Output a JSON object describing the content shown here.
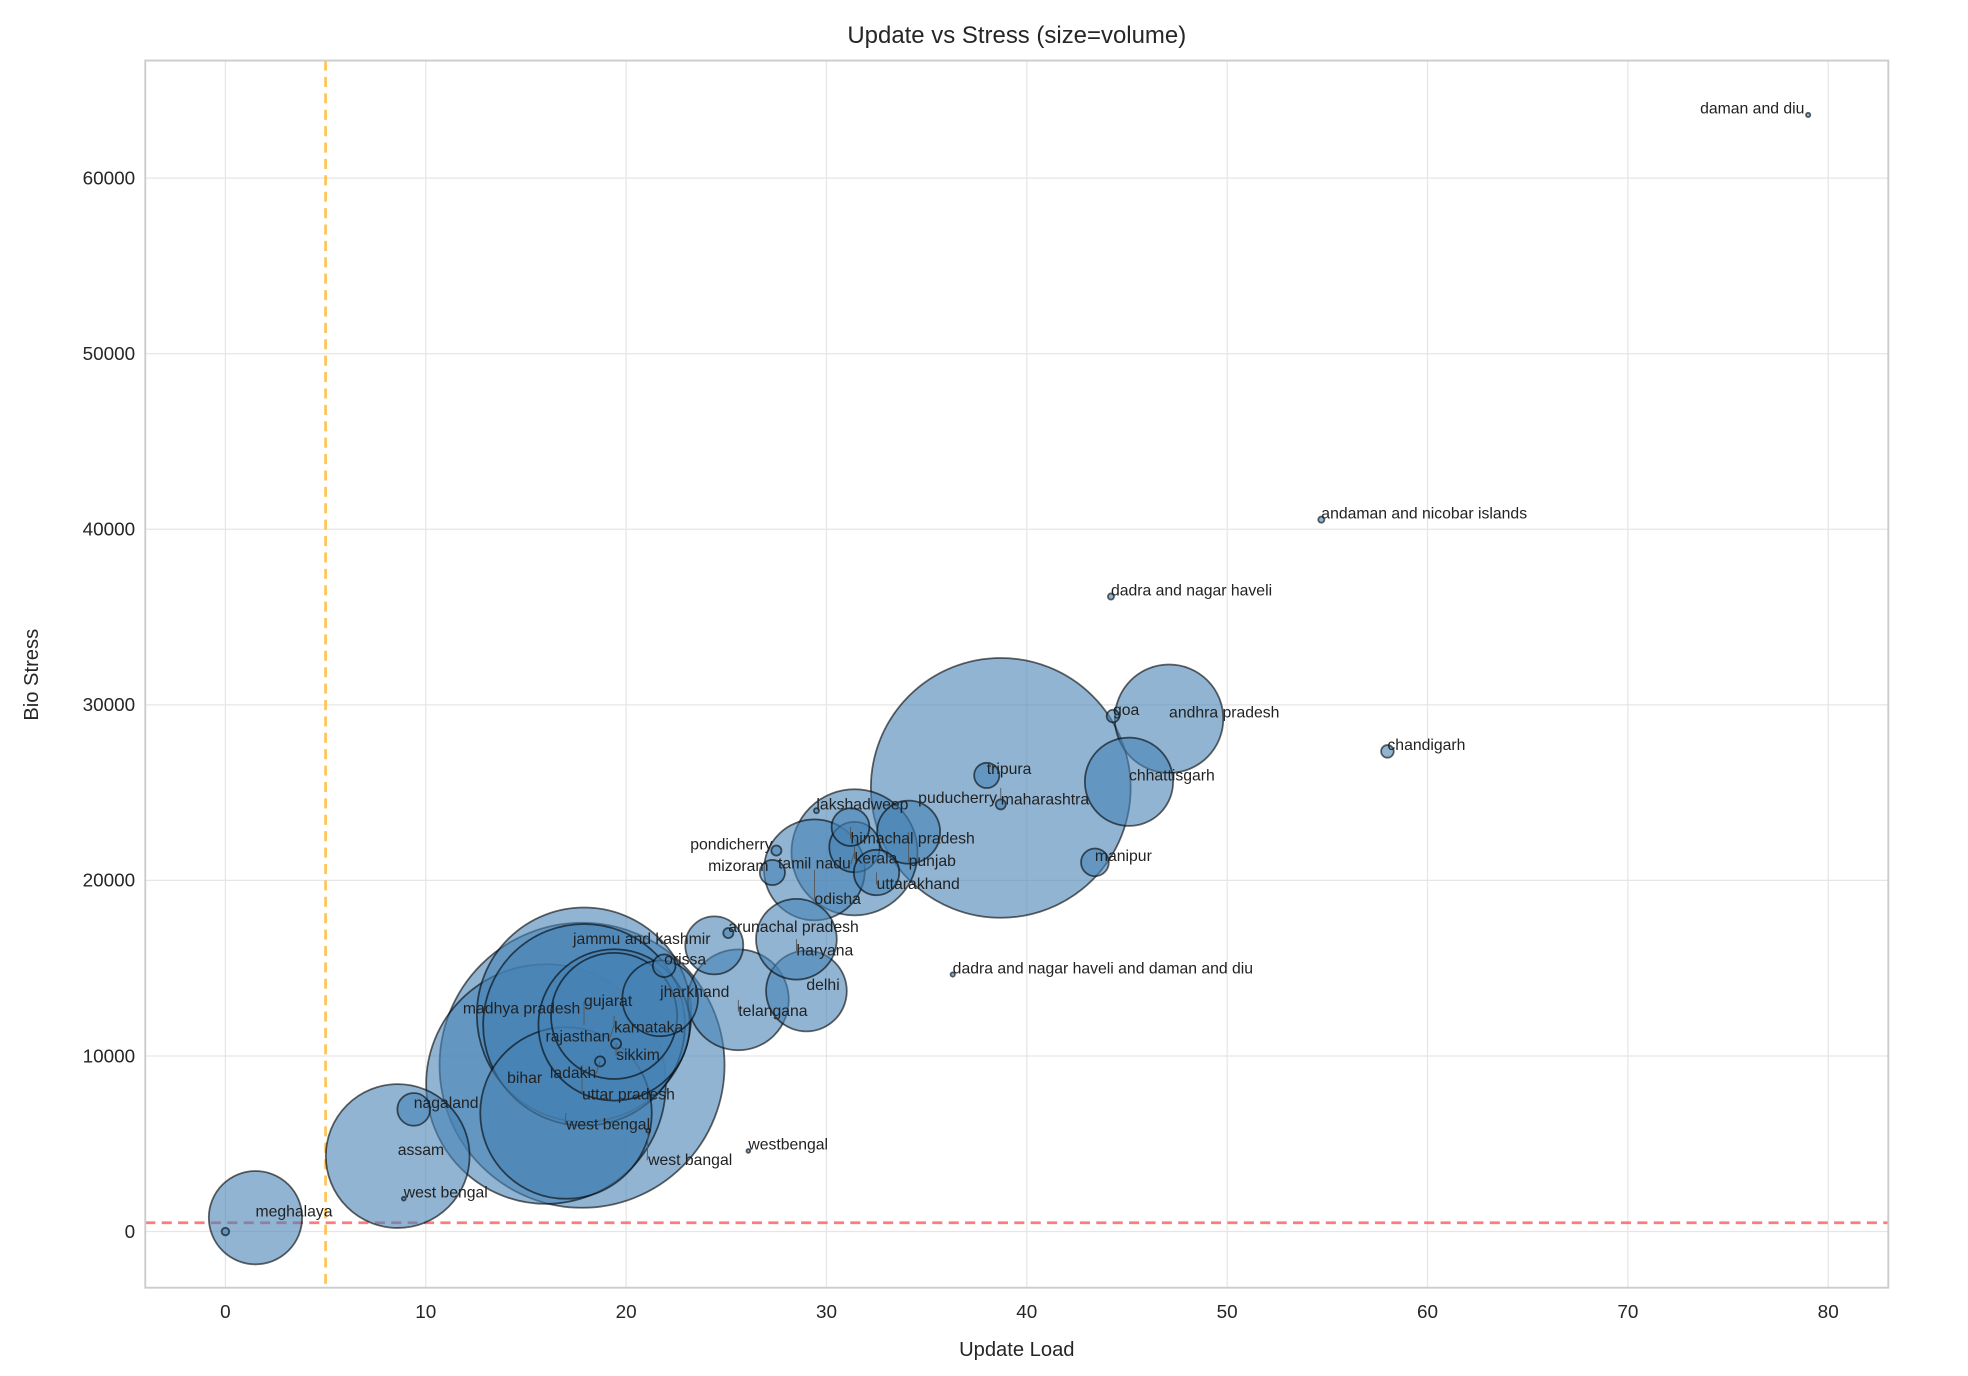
{
  "chart_data": {
    "type": "scatter",
    "title": "Update vs Stress (size=volume)",
    "xlabel": "Update Load",
    "ylabel": "Bio Stress",
    "xlim": [
      -4,
      83
    ],
    "ylim": [
      -3200,
      66700
    ],
    "xticks": [
      0,
      10,
      20,
      30,
      40,
      50,
      60,
      70,
      80
    ],
    "yticks": [
      0,
      10000,
      20000,
      30000,
      40000,
      50000,
      60000
    ],
    "grid": true,
    "marker_color": "#4682b4",
    "reference_lines": [
      {
        "orientation": "vertical",
        "value": 5,
        "color": "#ffb732",
        "style": "dashed"
      },
      {
        "orientation": "horizontal",
        "value": 500,
        "color": "#ff5a5a",
        "style": "dashed"
      }
    ],
    "points": [
      {
        "label": "",
        "x": 0,
        "y": 0,
        "size": 9
      },
      {
        "label": "meghalaya",
        "x": 1.5,
        "y": 790,
        "size": 1369
      },
      {
        "label": "west  bengal",
        "x": 8.9,
        "y": 1870,
        "size": 2
      },
      {
        "label": "assam",
        "x": 8.6,
        "y": 4300,
        "size": 3249
      },
      {
        "label": "nagaland",
        "x": 9.4,
        "y": 6960,
        "size": 169
      },
      {
        "label": "uttar pradesh",
        "x": 17.8,
        "y": 9470,
        "size": 12769
      },
      {
        "label": "bihar",
        "x": 16.0,
        "y": 8400,
        "size": 9025
      },
      {
        "label": "madhya pradesh",
        "x": 17.9,
        "y": 12350,
        "size": 7225
      },
      {
        "label": "gujarat",
        "x": 17.9,
        "y": 11770,
        "size": 6400
      },
      {
        "label": "west bengal",
        "x": 17.0,
        "y": 6750,
        "size": 4624
      },
      {
        "label": "rajasthan",
        "x": 19.4,
        "y": 11770,
        "size": 3600
      },
      {
        "label": "karnataka",
        "x": 19.4,
        "y": 12280,
        "size": 2500
      },
      {
        "label": "sikkim",
        "x": 19.5,
        "y": 10700,
        "size": 16
      },
      {
        "label": "ladakh",
        "x": 18.7,
        "y": 9690,
        "size": 16
      },
      {
        "label": "west bangal",
        "x": 21.1,
        "y": 5740,
        "size": 2
      },
      {
        "label": "westbengal",
        "x": 26.1,
        "y": 4590,
        "size": 2
      },
      {
        "label": "jharkhand",
        "x": 21.7,
        "y": 13280,
        "size": 900
      },
      {
        "label": "telangana",
        "x": 25.6,
        "y": 13200,
        "size": 1600
      },
      {
        "label": "delhi",
        "x": 29.0,
        "y": 13700,
        "size": 1024
      },
      {
        "label": "orissa",
        "x": 21.9,
        "y": 15140,
        "size": 81
      },
      {
        "label": "jammu and kashmir",
        "x": 24.4,
        "y": 16300,
        "size": 529
      },
      {
        "label": "arunachal pradesh",
        "x": 25.1,
        "y": 17000,
        "size": 16
      },
      {
        "label": "haryana",
        "x": 28.5,
        "y": 16650,
        "size": 1024
      },
      {
        "label": "mizoram",
        "x": 27.3,
        "y": 20450,
        "size": 100
      },
      {
        "label": "pondicherry",
        "x": 27.5,
        "y": 21700,
        "size": 16
      },
      {
        "label": "odisha",
        "x": 29.4,
        "y": 20600,
        "size": 1600
      },
      {
        "label": "tamil nadu",
        "x": 31.4,
        "y": 21600,
        "size": 2500
      },
      {
        "label": "kerala",
        "x": 31.4,
        "y": 21900,
        "size": 400
      },
      {
        "label": "himachal pradesh",
        "x": 31.2,
        "y": 23040,
        "size": 225
      },
      {
        "label": "punjab",
        "x": 34.1,
        "y": 22750,
        "size": 625
      },
      {
        "label": "uttarakhand",
        "x": 32.5,
        "y": 20450,
        "size": 324
      },
      {
        "label": "lakshadweep",
        "x": 29.5,
        "y": 23970,
        "size": 4
      },
      {
        "label": "maharashtra",
        "x": 38.7,
        "y": 25270,
        "size": 10609
      },
      {
        "label": "tripura",
        "x": 38.0,
        "y": 25980,
        "size": 100
      },
      {
        "label": "puducherry",
        "x": 38.7,
        "y": 24330,
        "size": 16
      },
      {
        "label": "chhattisgarh",
        "x": 45.1,
        "y": 25620,
        "size": 1225
      },
      {
        "label": "andhra pradesh",
        "x": 47.1,
        "y": 29210,
        "size": 1849
      },
      {
        "label": "goa",
        "x": 44.3,
        "y": 29360,
        "size": 25
      },
      {
        "label": "manipur",
        "x": 43.4,
        "y": 21030,
        "size": 121
      },
      {
        "label": "chandigarh",
        "x": 58.0,
        "y": 27350,
        "size": 25
      },
      {
        "label": "dadra and nagar haveli",
        "x": 44.2,
        "y": 36170,
        "size": 6
      },
      {
        "label": "andaman and nicobar islands",
        "x": 54.7,
        "y": 40550,
        "size": 6
      },
      {
        "label": "daman and diu",
        "x": 79.0,
        "y": 63600,
        "size": 3
      },
      {
        "label": "dadra and nagar haveli and daman and diu",
        "x": 36.3,
        "y": 14640,
        "size": 3
      }
    ]
  }
}
